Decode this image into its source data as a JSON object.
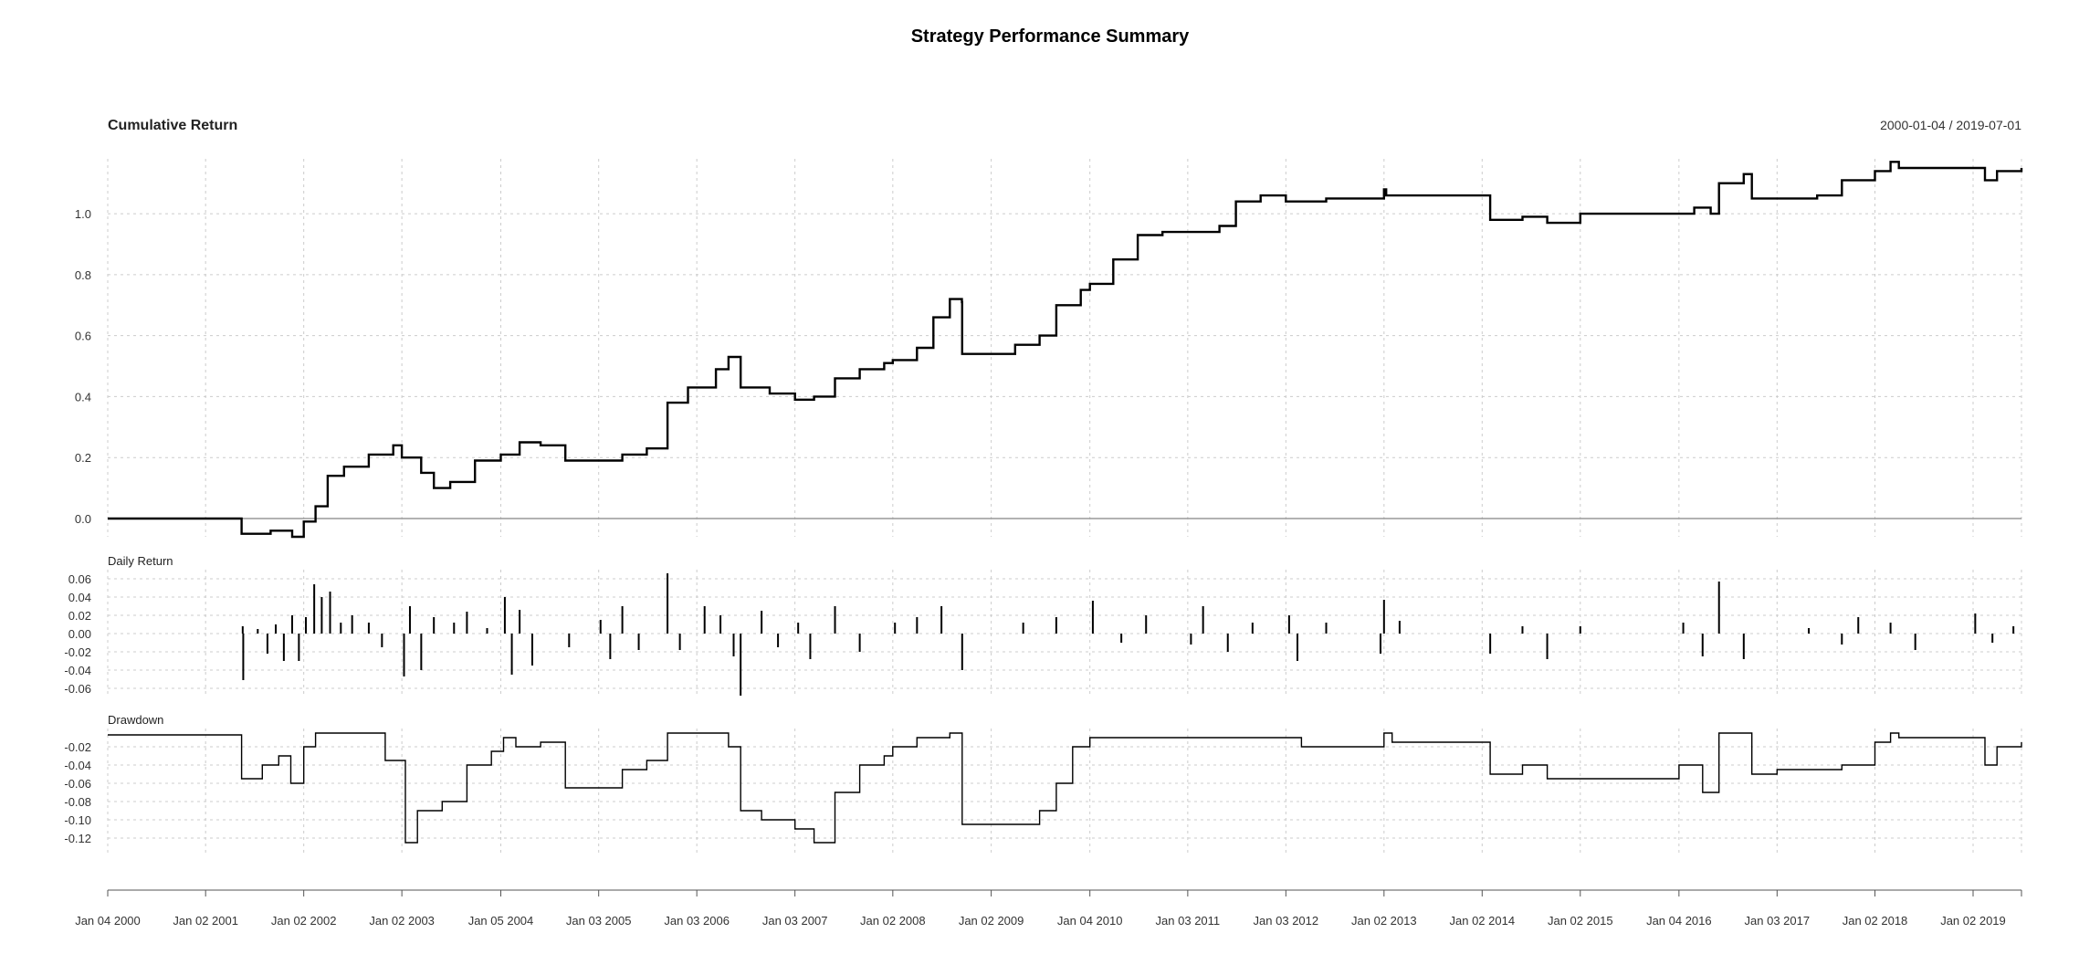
{
  "title": "Strategy Performance Summary",
  "date_range": "2000-01-04 / 2019-07-01",
  "panels": {
    "cumulative": {
      "title": "Cumulative Return",
      "ticks": [
        "0.0",
        "0.2",
        "0.4",
        "0.6",
        "0.8",
        "1.0"
      ]
    },
    "daily": {
      "title": "Daily Return",
      "ticks": [
        "0.06",
        "0.04",
        "0.02",
        "0.00",
        "-0.02",
        "-0.04",
        "-0.06"
      ]
    },
    "drawdown": {
      "title": "Drawdown",
      "ticks": [
        "-0.02",
        "-0.04",
        "-0.06",
        "-0.08",
        "-0.10",
        "-0.12"
      ]
    }
  },
  "x_ticks": [
    "Jan 04 2000",
    "Jan 02 2001",
    "Jan 02 2002",
    "Jan 02 2003",
    "Jan 05 2004",
    "Jan 03 2005",
    "Jan 03 2006",
    "Jan 03 2007",
    "Jan 02 2008",
    "Jan 02 2009",
    "Jan 04 2010",
    "Jan 03 2011",
    "Jan 03 2012",
    "Jan 02 2013",
    "Jan 02 2014",
    "Jan 02 2015",
    "Jan 04 2016",
    "Jan 03 2017",
    "Jan 02 2018",
    "Jan 02 2019"
  ],
  "colors": {
    "line": "#000000",
    "grid": "#cccccc",
    "zero_line": "#999999",
    "axis": "#555555"
  },
  "chart_data": [
    {
      "type": "line",
      "title": "Cumulative Return",
      "x_range": [
        "2000-01-04",
        "2019-07-01"
      ],
      "ylim": [
        -0.06,
        1.18
      ],
      "grid": true,
      "series": [
        {
          "values": [
            [
              "2000-01-04",
              0.0
            ],
            [
              "2001-05-15",
              0.0
            ],
            [
              "2001-05-16",
              -0.05
            ],
            [
              "2001-09-01",
              -0.04
            ],
            [
              "2001-11-20",
              -0.06
            ],
            [
              "2002-01-02",
              -0.01
            ],
            [
              "2002-02-15",
              0.04
            ],
            [
              "2002-04-01",
              0.14
            ],
            [
              "2002-06-01",
              0.17
            ],
            [
              "2002-09-01",
              0.21
            ],
            [
              "2002-12-01",
              0.24
            ],
            [
              "2003-01-02",
              0.2
            ],
            [
              "2003-03-15",
              0.15
            ],
            [
              "2003-05-01",
              0.1
            ],
            [
              "2003-07-01",
              0.12
            ],
            [
              "2003-10-01",
              0.19
            ],
            [
              "2004-01-05",
              0.21
            ],
            [
              "2004-03-15",
              0.25
            ],
            [
              "2004-06-01",
              0.24
            ],
            [
              "2004-09-01",
              0.19
            ],
            [
              "2005-01-03",
              0.19
            ],
            [
              "2005-04-01",
              0.21
            ],
            [
              "2005-07-01",
              0.23
            ],
            [
              "2005-09-15",
              0.23
            ],
            [
              "2005-09-16",
              0.38
            ],
            [
              "2005-12-01",
              0.43
            ],
            [
              "2006-03-15",
              0.49
            ],
            [
              "2006-05-01",
              0.53
            ],
            [
              "2006-06-15",
              0.43
            ],
            [
              "2006-10-01",
              0.41
            ],
            [
              "2007-01-03",
              0.39
            ],
            [
              "2007-03-15",
              0.4
            ],
            [
              "2007-06-01",
              0.46
            ],
            [
              "2007-09-01",
              0.49
            ],
            [
              "2007-12-01",
              0.51
            ],
            [
              "2008-01-02",
              0.52
            ],
            [
              "2008-04-01",
              0.56
            ],
            [
              "2008-06-01",
              0.66
            ],
            [
              "2008-08-01",
              0.72
            ],
            [
              "2008-09-15",
              0.71
            ],
            [
              "2008-09-16",
              0.54
            ],
            [
              "2009-01-02",
              0.54
            ],
            [
              "2009-04-01",
              0.57
            ],
            [
              "2009-07-01",
              0.6
            ],
            [
              "2009-09-01",
              0.7
            ],
            [
              "2009-12-01",
              0.75
            ],
            [
              "2010-01-04",
              0.77
            ],
            [
              "2010-04-01",
              0.85
            ],
            [
              "2010-07-01",
              0.93
            ],
            [
              "2010-10-01",
              0.94
            ],
            [
              "2011-01-03",
              0.94
            ],
            [
              "2011-05-01",
              0.96
            ],
            [
              "2011-07-01",
              1.04
            ],
            [
              "2011-10-01",
              1.06
            ],
            [
              "2012-01-03",
              1.04
            ],
            [
              "2012-06-01",
              1.05
            ],
            [
              "2012-12-01",
              1.05
            ],
            [
              "2013-01-02",
              1.08
            ],
            [
              "2013-01-10",
              1.06
            ],
            [
              "2014-01-02",
              1.06
            ],
            [
              "2014-02-01",
              0.98
            ],
            [
              "2014-06-01",
              0.99
            ],
            [
              "2014-09-01",
              0.97
            ],
            [
              "2015-01-02",
              1.0
            ],
            [
              "2015-12-01",
              1.0
            ],
            [
              "2016-01-04",
              1.0
            ],
            [
              "2016-03-01",
              1.02
            ],
            [
              "2016-05-01",
              1.0
            ],
            [
              "2016-06-01",
              1.1
            ],
            [
              "2016-09-01",
              1.13
            ],
            [
              "2016-10-01",
              1.05
            ],
            [
              "2017-01-03",
              1.05
            ],
            [
              "2017-06-01",
              1.06
            ],
            [
              "2017-09-01",
              1.11
            ],
            [
              "2018-01-02",
              1.14
            ],
            [
              "2018-03-01",
              1.17
            ],
            [
              "2018-04-01",
              1.15
            ],
            [
              "2019-01-02",
              1.15
            ],
            [
              "2019-02-15",
              1.11
            ],
            [
              "2019-04-01",
              1.14
            ],
            [
              "2019-07-01",
              1.15
            ]
          ]
        }
      ]
    },
    {
      "type": "bar",
      "title": "Daily Return",
      "x_range": [
        "2000-01-04",
        "2019-07-01"
      ],
      "ylim": [
        -0.07,
        0.07
      ],
      "series": [
        {
          "values": [
            [
              "2001-05-20",
              0.008
            ],
            [
              "2001-05-22",
              -0.051
            ],
            [
              "2001-07-15",
              0.005
            ],
            [
              "2001-08-20",
              -0.022
            ],
            [
              "2001-09-20",
              0.01
            ],
            [
              "2001-10-20",
              -0.03
            ],
            [
              "2001-11-20",
              0.02
            ],
            [
              "2001-12-15",
              -0.03
            ],
            [
              "2002-01-10",
              0.018
            ],
            [
              "2002-02-10",
              0.054
            ],
            [
              "2002-03-10",
              0.04
            ],
            [
              "2002-04-10",
              0.046
            ],
            [
              "2002-05-20",
              0.012
            ],
            [
              "2002-07-01",
              0.02
            ],
            [
              "2002-09-01",
              0.012
            ],
            [
              "2002-10-20",
              -0.015
            ],
            [
              "2003-01-10",
              -0.047
            ],
            [
              "2003-02-01",
              0.03
            ],
            [
              "2003-03-15",
              -0.04
            ],
            [
              "2003-05-01",
              0.018
            ],
            [
              "2003-07-15",
              0.012
            ],
            [
              "2003-09-01",
              0.024
            ],
            [
              "2003-11-15",
              0.006
            ],
            [
              "2004-01-20",
              0.04
            ],
            [
              "2004-02-15",
              -0.045
            ],
            [
              "2004-03-15",
              0.026
            ],
            [
              "2004-05-01",
              -0.035
            ],
            [
              "2004-09-15",
              -0.015
            ],
            [
              "2005-01-10",
              0.015
            ],
            [
              "2005-02-15",
              -0.028
            ],
            [
              "2005-04-01",
              0.03
            ],
            [
              "2005-06-01",
              -0.018
            ],
            [
              "2005-09-16",
              0.066
            ],
            [
              "2005-11-01",
              -0.018
            ],
            [
              "2006-02-01",
              0.03
            ],
            [
              "2006-04-01",
              0.02
            ],
            [
              "2006-05-20",
              -0.025
            ],
            [
              "2006-06-15",
              -0.068
            ],
            [
              "2006-09-01",
              0.025
            ],
            [
              "2006-11-01",
              -0.015
            ],
            [
              "2007-01-15",
              0.012
            ],
            [
              "2007-03-01",
              -0.028
            ],
            [
              "2007-06-01",
              0.03
            ],
            [
              "2007-09-01",
              -0.02
            ],
            [
              "2008-01-10",
              0.012
            ],
            [
              "2008-04-01",
              0.018
            ],
            [
              "2008-07-01",
              0.03
            ],
            [
              "2008-09-16",
              -0.04
            ],
            [
              "2009-05-01",
              0.012
            ],
            [
              "2009-09-01",
              0.018
            ],
            [
              "2010-01-15",
              0.036
            ],
            [
              "2010-05-01",
              -0.01
            ],
            [
              "2010-08-01",
              0.02
            ],
            [
              "2011-01-15",
              -0.012
            ],
            [
              "2011-03-01",
              0.03
            ],
            [
              "2011-06-01",
              -0.02
            ],
            [
              "2011-09-01",
              0.012
            ],
            [
              "2012-01-15",
              0.02
            ],
            [
              "2012-02-15",
              -0.03
            ],
            [
              "2012-06-01",
              0.012
            ],
            [
              "2012-12-20",
              -0.022
            ],
            [
              "2013-01-02",
              0.037
            ],
            [
              "2013-03-01",
              0.014
            ],
            [
              "2014-02-01",
              -0.022
            ],
            [
              "2014-06-01",
              0.008
            ],
            [
              "2014-09-01",
              -0.028
            ],
            [
              "2015-01-02",
              0.008
            ],
            [
              "2016-01-20",
              0.012
            ],
            [
              "2016-04-01",
              -0.025
            ],
            [
              "2016-06-01",
              0.057
            ],
            [
              "2016-09-01",
              -0.028
            ],
            [
              "2017-05-01",
              0.006
            ],
            [
              "2017-09-01",
              -0.012
            ],
            [
              "2017-11-01",
              0.018
            ],
            [
              "2018-03-01",
              0.012
            ],
            [
              "2018-06-01",
              -0.018
            ],
            [
              "2019-01-10",
              0.022
            ],
            [
              "2019-03-15",
              -0.01
            ],
            [
              "2019-06-01",
              0.008
            ]
          ]
        }
      ]
    },
    {
      "type": "line",
      "title": "Drawdown",
      "x_range": [
        "2000-01-04",
        "2019-07-01"
      ],
      "ylim": [
        -0.14,
        0.0
      ],
      "series": [
        {
          "values": [
            [
              "2000-01-04",
              -0.007
            ],
            [
              "2001-05-15",
              -0.007
            ],
            [
              "2001-05-16",
              -0.055
            ],
            [
              "2001-08-01",
              -0.04
            ],
            [
              "2001-10-01",
              -0.03
            ],
            [
              "2001-11-15",
              -0.06
            ],
            [
              "2002-01-02",
              -0.02
            ],
            [
              "2002-02-15",
              -0.005
            ],
            [
              "2002-10-15",
              -0.005
            ],
            [
              "2002-11-01",
              -0.035
            ],
            [
              "2003-01-02",
              -0.035
            ],
            [
              "2003-01-15",
              -0.125
            ],
            [
              "2003-03-01",
              -0.09
            ],
            [
              "2003-06-01",
              -0.08
            ],
            [
              "2003-09-01",
              -0.04
            ],
            [
              "2003-12-01",
              -0.025
            ],
            [
              "2004-01-15",
              -0.01
            ],
            [
              "2004-03-01",
              -0.02
            ],
            [
              "2004-06-01",
              -0.015
            ],
            [
              "2004-09-01",
              -0.065
            ],
            [
              "2005-01-03",
              -0.065
            ],
            [
              "2005-04-01",
              -0.045
            ],
            [
              "2005-07-01",
              -0.035
            ],
            [
              "2005-09-15",
              -0.035
            ],
            [
              "2005-09-16",
              -0.005
            ],
            [
              "2006-03-15",
              -0.005
            ],
            [
              "2006-05-01",
              -0.02
            ],
            [
              "2006-06-15",
              -0.09
            ],
            [
              "2006-09-01",
              -0.1
            ],
            [
              "2007-01-03",
              -0.11
            ],
            [
              "2007-03-15",
              -0.125
            ],
            [
              "2007-06-01",
              -0.07
            ],
            [
              "2007-09-01",
              -0.04
            ],
            [
              "2007-12-01",
              -0.03
            ],
            [
              "2008-01-02",
              -0.02
            ],
            [
              "2008-04-01",
              -0.01
            ],
            [
              "2008-08-01",
              -0.005
            ],
            [
              "2008-09-15",
              -0.005
            ],
            [
              "2008-09-16",
              -0.105
            ],
            [
              "2009-04-01",
              -0.105
            ],
            [
              "2009-07-01",
              -0.09
            ],
            [
              "2009-09-01",
              -0.06
            ],
            [
              "2009-11-01",
              -0.02
            ],
            [
              "2010-01-04",
              -0.01
            ],
            [
              "2011-01-03",
              -0.01
            ],
            [
              "2012-01-03",
              -0.01
            ],
            [
              "2012-03-01",
              -0.02
            ],
            [
              "2012-12-01",
              -0.02
            ],
            [
              "2013-01-02",
              -0.005
            ],
            [
              "2013-02-01",
              -0.015
            ],
            [
              "2014-01-02",
              -0.015
            ],
            [
              "2014-02-01",
              -0.05
            ],
            [
              "2014-06-01",
              -0.04
            ],
            [
              "2014-09-01",
              -0.055
            ],
            [
              "2015-01-02",
              -0.055
            ],
            [
              "2016-01-04",
              -0.04
            ],
            [
              "2016-04-01",
              -0.07
            ],
            [
              "2016-06-01",
              -0.005
            ],
            [
              "2016-10-01",
              -0.05
            ],
            [
              "2017-01-03",
              -0.045
            ],
            [
              "2017-09-01",
              -0.04
            ],
            [
              "2018-01-02",
              -0.015
            ],
            [
              "2018-03-01",
              -0.005
            ],
            [
              "2018-04-01",
              -0.01
            ],
            [
              "2019-01-02",
              -0.01
            ],
            [
              "2019-02-15",
              -0.04
            ],
            [
              "2019-04-01",
              -0.02
            ],
            [
              "2019-07-01",
              -0.015
            ]
          ]
        }
      ]
    }
  ]
}
